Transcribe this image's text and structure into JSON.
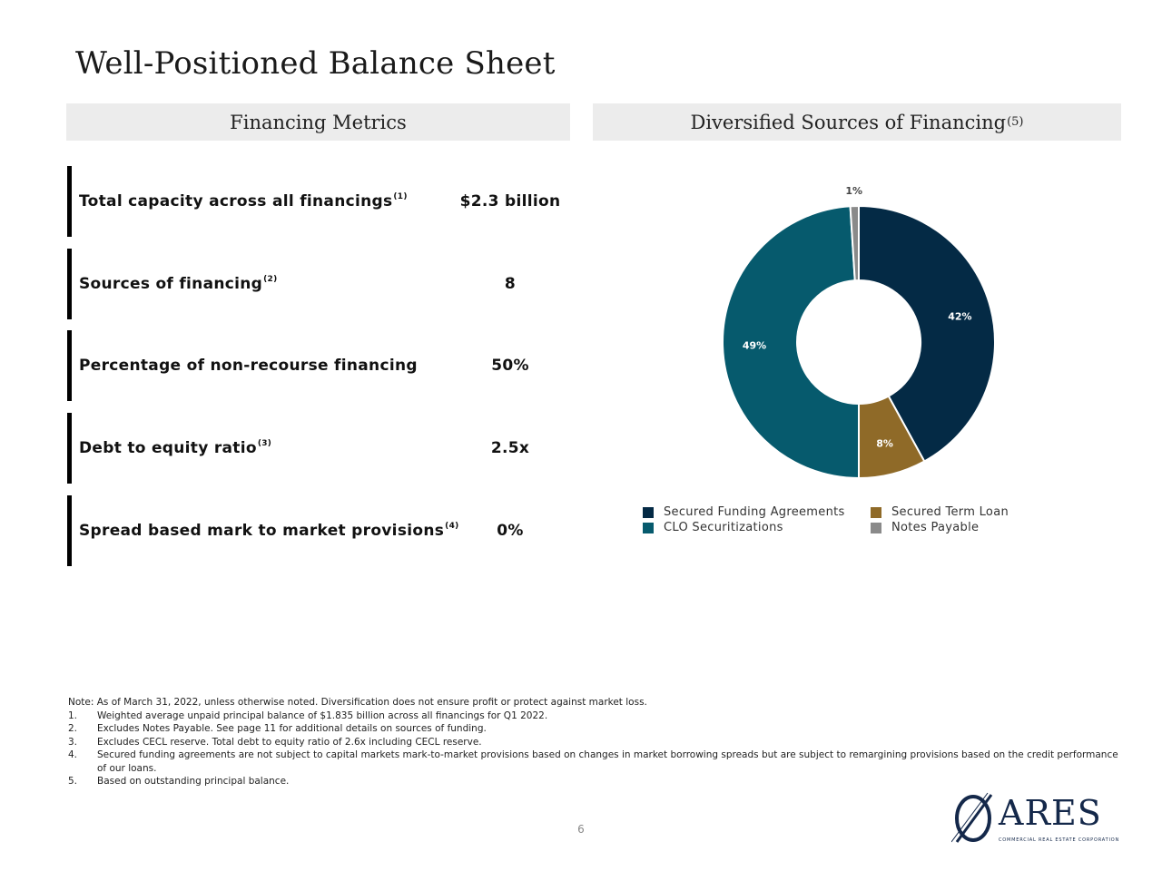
{
  "title": "Well-Positioned Balance Sheet",
  "left_panel": {
    "header": "Financing Metrics"
  },
  "right_panel": {
    "header": "Diversified Sources of Financing",
    "header_sup": "(5)"
  },
  "metrics": [
    {
      "label": "Total capacity across all financings",
      "sup": "(1)",
      "value": "$2.3 billion"
    },
    {
      "label": "Sources of financing",
      "sup": "(2)",
      "value": "8"
    },
    {
      "label": "Percentage of non-recourse financing",
      "sup": "",
      "value": "50%"
    },
    {
      "label": "Debt to equity ratio",
      "sup": "(3)",
      "value": "2.5x"
    },
    {
      "label": "Spread based mark to market provisions",
      "sup": "(4)",
      "value": "0%"
    }
  ],
  "chart_data": {
    "type": "pie",
    "donut": true,
    "categories": [
      "Secured Funding Agreements",
      "Secured Term Loan",
      "CLO Securitizations",
      "Notes Payable"
    ],
    "values": [
      42,
      8,
      49,
      1
    ],
    "labels": [
      "42%",
      "8%",
      "49%",
      "1%"
    ],
    "colors": [
      "#042a45",
      "#8f6a28",
      "#065a6d",
      "#8a8a8a"
    ],
    "label_colors": [
      "#ffffff",
      "#ffffff",
      "#ffffff",
      "#444444"
    ],
    "legend": {
      "placement": "bottom"
    },
    "title": ""
  },
  "notes": {
    "intro": "Note: As of March 31, 2022, unless otherwise noted. Diversification does not ensure profit or protect against market loss.",
    "items": [
      {
        "num": "1.",
        "text": "Weighted average unpaid principal balance of $1.835 billion across all financings for Q1 2022."
      },
      {
        "num": "2.",
        "text": "Excludes Notes Payable. See page 11 for additional details on sources of funding."
      },
      {
        "num": "3.",
        "text": "Excludes CECL reserve. Total debt to equity ratio of 2.6x including CECL reserve."
      },
      {
        "num": "4.",
        "text": "Secured funding agreements are not subject to capital markets mark-to-market provisions based on changes in market borrowing spreads but are subject to remargining provisions based on the credit performance of our loans."
      },
      {
        "num": "5.",
        "text": "Based on outstanding principal balance."
      }
    ]
  },
  "page_number": "6",
  "logo": {
    "word": "ARES",
    "subtitle": "COMMERCIAL REAL ESTATE CORPORATION"
  }
}
